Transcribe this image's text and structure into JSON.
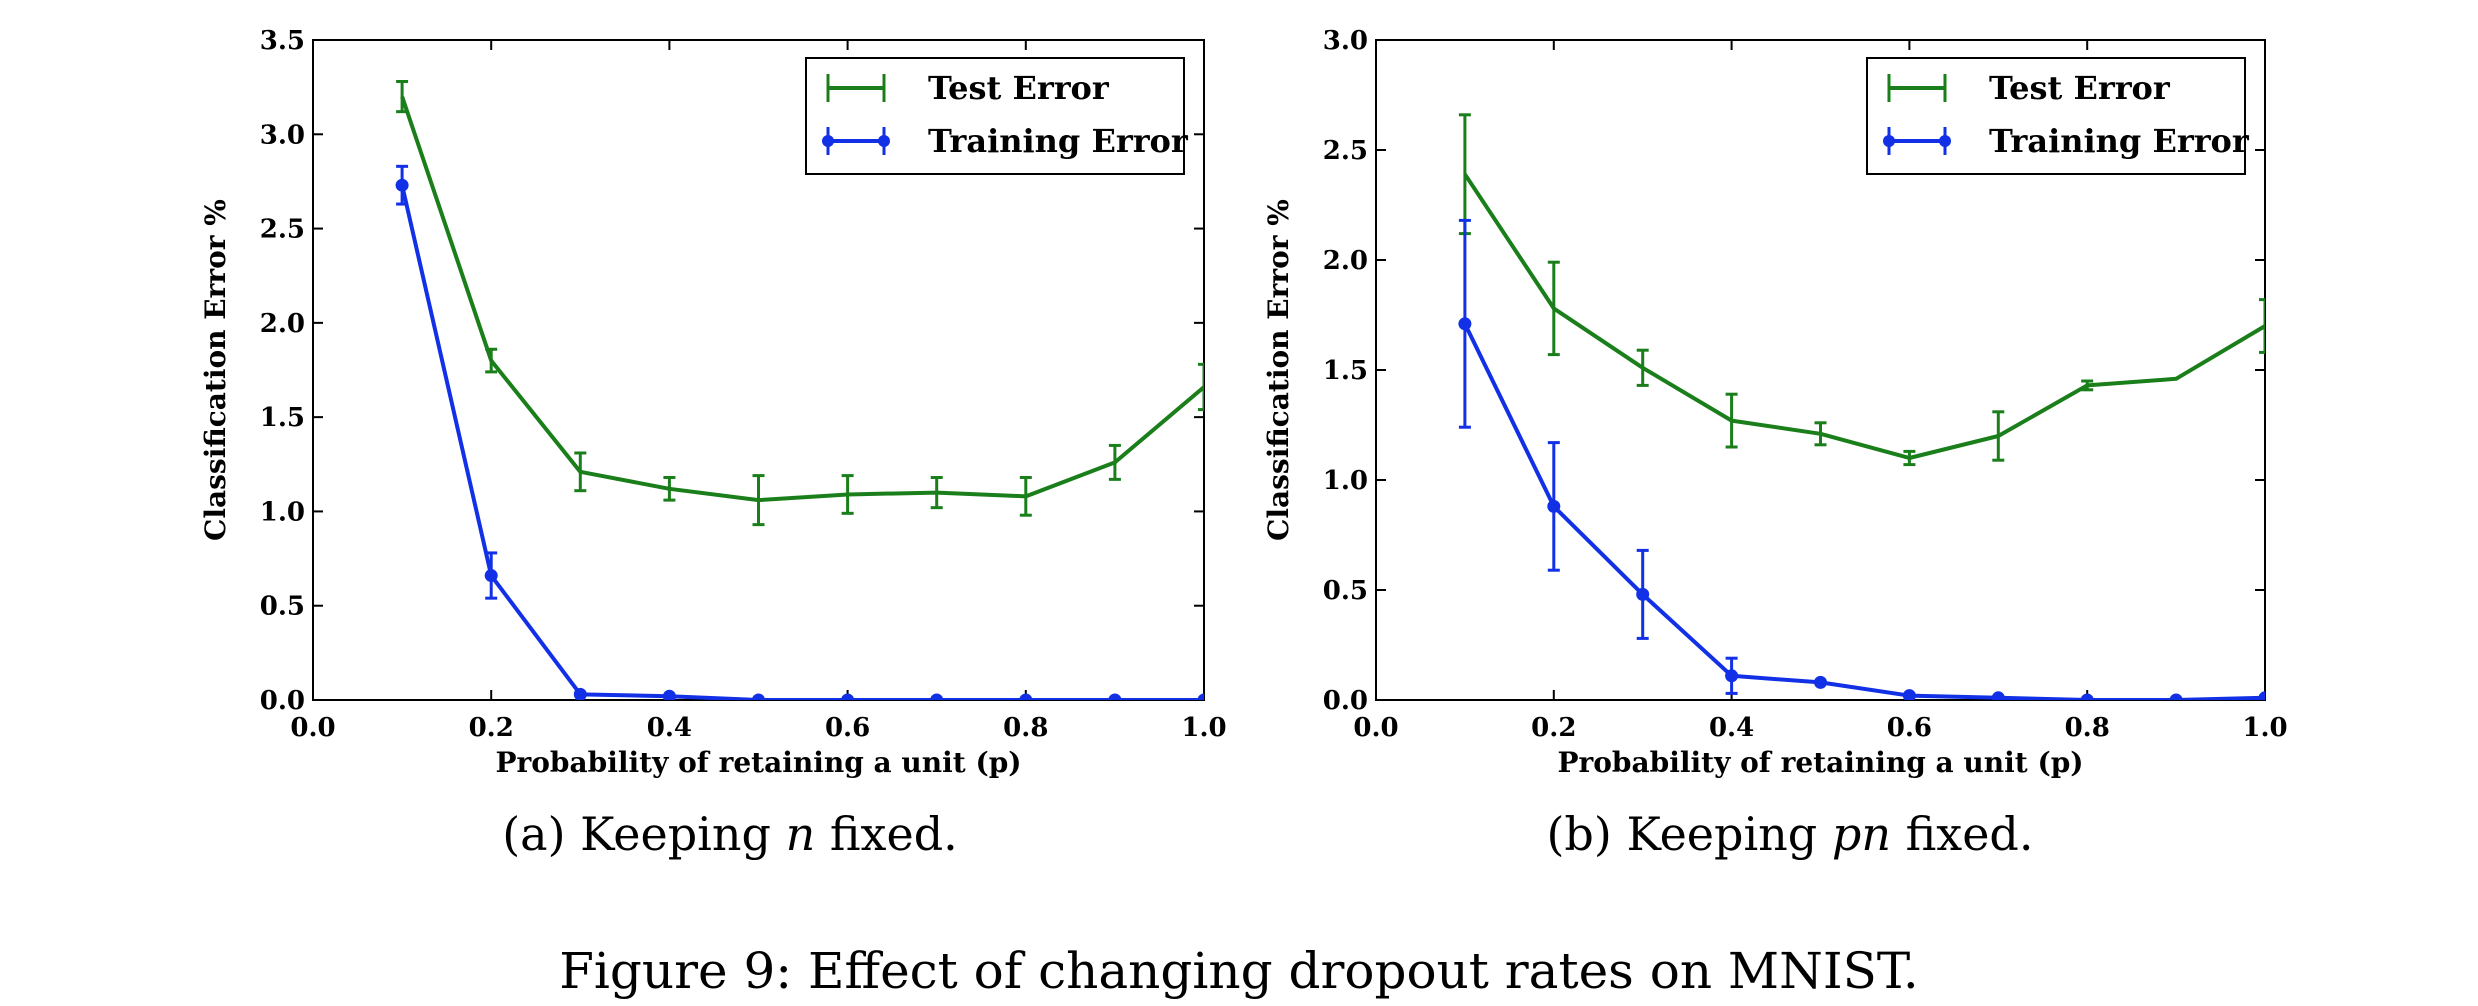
{
  "chart_data": [
    {
      "type": "line",
      "xlabel": "Probability of retaining a unit (p)",
      "ylabel": "Classification Error %",
      "xlim": [
        0.0,
        1.0
      ],
      "ylim": [
        0.0,
        3.5
      ],
      "xticks": [
        "0.0",
        "0.2",
        "0.4",
        "0.6",
        "0.8",
        "1.0"
      ],
      "yticks": [
        "0.0",
        "0.5",
        "1.0",
        "1.5",
        "2.0",
        "2.5",
        "3.0",
        "3.5"
      ],
      "grid": false,
      "legend_position": "top-right",
      "caption_prefix": "(a) Keeping ",
      "caption_var": "n",
      "caption_suffix": " fixed.",
      "series": [
        {
          "name": "Test Error",
          "color": "#1a7f1a",
          "marker": "none",
          "x": [
            0.1,
            0.2,
            0.3,
            0.4,
            0.5,
            0.6,
            0.7,
            0.8,
            0.9,
            1.0
          ],
          "y": [
            3.2,
            1.8,
            1.21,
            1.12,
            1.06,
            1.09,
            1.1,
            1.08,
            1.26,
            1.66
          ],
          "err": [
            0.08,
            0.06,
            0.1,
            0.06,
            0.13,
            0.1,
            0.08,
            0.1,
            0.09,
            0.12
          ]
        },
        {
          "name": "Training Error",
          "color": "#1230e6",
          "marker": "circle",
          "x": [
            0.1,
            0.2,
            0.3,
            0.4,
            0.5,
            0.6,
            0.7,
            0.8,
            0.9,
            1.0
          ],
          "y": [
            2.73,
            0.66,
            0.03,
            0.02,
            0.0,
            0.0,
            0.0,
            0.0,
            0.0,
            0.0
          ],
          "err": [
            0.1,
            0.12,
            0.0,
            0.0,
            0.0,
            0.0,
            0.0,
            0.0,
            0.0,
            0.0
          ]
        }
      ]
    },
    {
      "type": "line",
      "xlabel": "Probability of retaining a unit (p)",
      "ylabel": "Classification Error %",
      "xlim": [
        0.0,
        1.0
      ],
      "ylim": [
        0.0,
        3.0
      ],
      "xticks": [
        "0.0",
        "0.2",
        "0.4",
        "0.6",
        "0.8",
        "1.0"
      ],
      "yticks": [
        "0.0",
        "0.5",
        "1.0",
        "1.5",
        "2.0",
        "2.5",
        "3.0"
      ],
      "grid": false,
      "legend_position": "top-right",
      "caption_prefix": "(b) Keeping ",
      "caption_var": "pn",
      "caption_suffix": " fixed.",
      "series": [
        {
          "name": "Test Error",
          "color": "#1a7f1a",
          "marker": "none",
          "x": [
            0.1,
            0.2,
            0.3,
            0.4,
            0.5,
            0.6,
            0.7,
            0.8,
            0.9,
            1.0
          ],
          "y": [
            2.39,
            1.78,
            1.51,
            1.27,
            1.21,
            1.1,
            1.2,
            1.43,
            1.46,
            1.7
          ],
          "err": [
            0.27,
            0.21,
            0.08,
            0.12,
            0.05,
            0.03,
            0.11,
            0.02,
            0.0,
            0.12
          ]
        },
        {
          "name": "Training Error",
          "color": "#1230e6",
          "marker": "circle",
          "x": [
            0.1,
            0.2,
            0.3,
            0.4,
            0.5,
            0.6,
            0.7,
            0.8,
            0.9,
            1.0
          ],
          "y": [
            1.71,
            0.88,
            0.48,
            0.11,
            0.08,
            0.02,
            0.01,
            0.0,
            0.0,
            0.01
          ],
          "err": [
            0.47,
            0.29,
            0.2,
            0.08,
            0.0,
            0.0,
            0.0,
            0.0,
            0.0,
            0.0
          ]
        }
      ]
    }
  ],
  "figure_caption": "Figure 9: Effect of changing dropout rates on MNIST."
}
